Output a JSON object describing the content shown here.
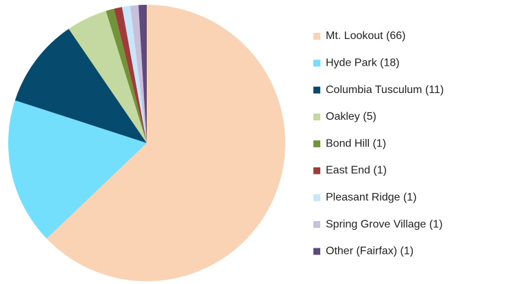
{
  "chart_data": {
    "type": "pie",
    "categories": [
      "Mt. Lookout (66)",
      "Hyde Park (18)",
      "Columbia Tusculum (11)",
      "Oakley (5)",
      "Bond Hill (1)",
      "East End (1)",
      "Pleasant Ridge (1)",
      "Spring Grove Village (1)",
      "Other (Fairfax) (1)"
    ],
    "values": [
      66,
      18,
      11,
      5,
      1,
      1,
      1,
      1,
      1
    ],
    "colors": [
      "#fad3b4",
      "#74dffc",
      "#064a6e",
      "#c4d9a2",
      "#71933a",
      "#a33a3a",
      "#c7e6fa",
      "#c9c0dc",
      "#5e4a7c"
    ],
    "legend": "right"
  }
}
